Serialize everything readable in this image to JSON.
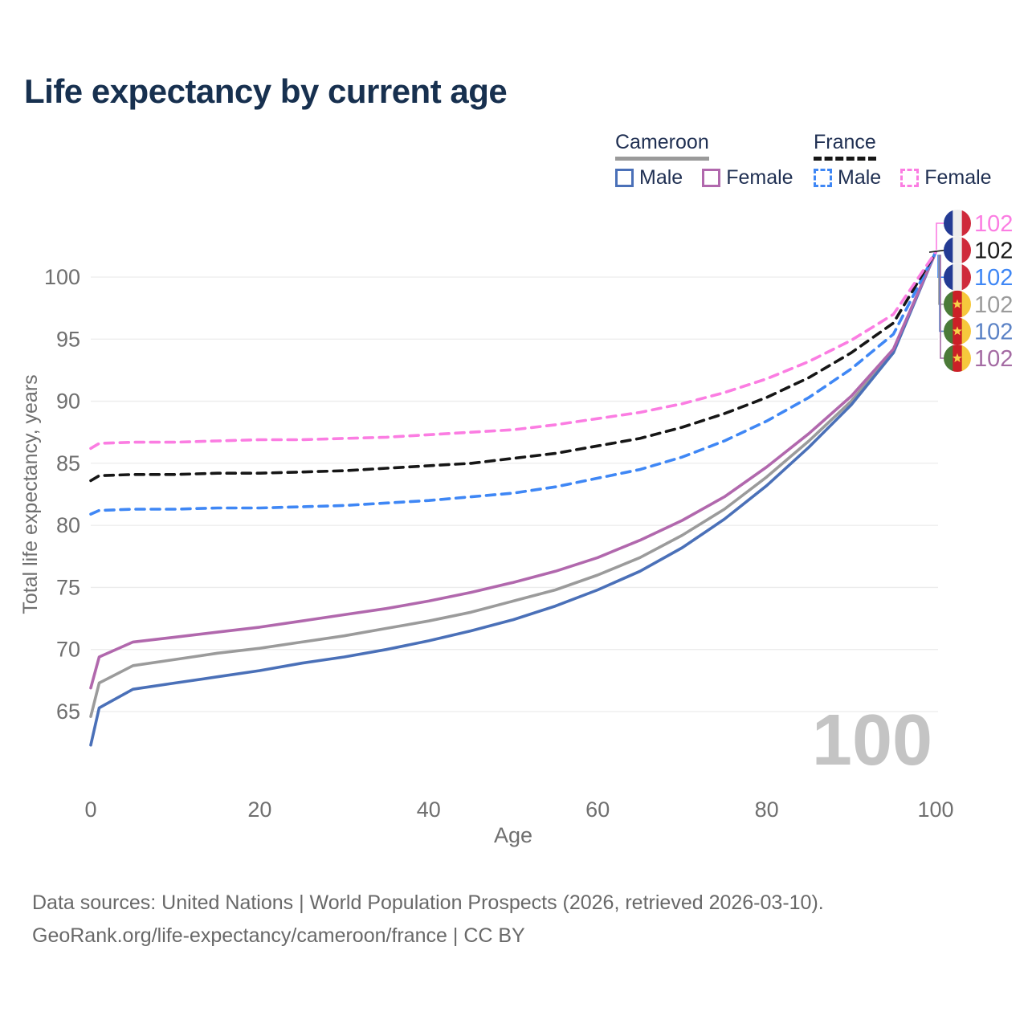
{
  "title": "Life expectancy by current age",
  "legend": {
    "groups": [
      {
        "name": "Cameroon",
        "line_style": "solid",
        "underline_color": "#9a9a9a",
        "items": [
          {
            "label": "Male",
            "color": "#4a70b8"
          },
          {
            "label": "Female",
            "color": "#b168ad"
          }
        ]
      },
      {
        "name": "France",
        "line_style": "dashed",
        "underline_color": "#161616",
        "items": [
          {
            "label": "Male",
            "color": "#3f87f5"
          },
          {
            "label": "Female",
            "color": "#fb7de2"
          }
        ]
      }
    ]
  },
  "watermark": "100",
  "footer": {
    "line1": "Data sources: United Nations | World Population Prospects (2026, retrieved 2026-03-10).",
    "line2": "GeoRank.org/life-expectancy/cameroon/france | CC BY"
  },
  "chart_data": {
    "type": "line",
    "title": "Life expectancy by current age",
    "xlabel": "Age",
    "ylabel": "Total life expectancy, years",
    "xlim": [
      0,
      100
    ],
    "ylim": [
      60,
      103
    ],
    "xticks": [
      0,
      20,
      40,
      60,
      80,
      100
    ],
    "yticks": [
      65,
      70,
      75,
      80,
      85,
      90,
      95,
      100
    ],
    "grid": true,
    "legend_position": "top-right",
    "x": [
      0,
      1,
      5,
      10,
      15,
      20,
      25,
      30,
      35,
      40,
      45,
      50,
      55,
      60,
      65,
      70,
      75,
      80,
      85,
      90,
      95,
      100
    ],
    "series": [
      {
        "name": "Cameroon Both sexes",
        "country": "Cameroon",
        "dash": "solid",
        "color": "#9b9b9b",
        "values": [
          64.6,
          67.3,
          68.7,
          69.2,
          69.7,
          70.1,
          70.6,
          71.1,
          71.7,
          72.3,
          73.0,
          73.9,
          74.8,
          76.0,
          77.4,
          79.2,
          81.3,
          83.9,
          86.8,
          90.0,
          94.0,
          102
        ]
      },
      {
        "name": "Cameroon Male",
        "country": "Cameroon",
        "sex": "Male",
        "dash": "solid",
        "color": "#4a70b8",
        "values": [
          62.3,
          65.3,
          66.8,
          67.3,
          67.8,
          68.3,
          68.9,
          69.4,
          70.0,
          70.7,
          71.5,
          72.4,
          73.5,
          74.8,
          76.3,
          78.2,
          80.5,
          83.2,
          86.3,
          89.7,
          93.9,
          102
        ]
      },
      {
        "name": "Cameroon Female",
        "country": "Cameroon",
        "sex": "Female",
        "dash": "solid",
        "color": "#b168ad",
        "values": [
          66.9,
          69.4,
          70.6,
          71.0,
          71.4,
          71.8,
          72.3,
          72.8,
          73.3,
          73.9,
          74.6,
          75.4,
          76.3,
          77.4,
          78.8,
          80.4,
          82.3,
          84.7,
          87.4,
          90.4,
          94.2,
          102
        ]
      },
      {
        "name": "France Male",
        "country": "France",
        "sex": "Male",
        "dash": "dashed",
        "color": "#3f87f5",
        "values": [
          80.9,
          81.2,
          81.3,
          81.3,
          81.4,
          81.4,
          81.5,
          81.6,
          81.8,
          82.0,
          82.3,
          82.6,
          83.1,
          83.8,
          84.5,
          85.5,
          86.8,
          88.4,
          90.3,
          92.6,
          95.4,
          102
        ]
      },
      {
        "name": "France Both sexes",
        "country": "France",
        "dash": "dashed",
        "color": "#161616",
        "values": [
          83.6,
          84.0,
          84.1,
          84.1,
          84.2,
          84.2,
          84.3,
          84.4,
          84.6,
          84.8,
          85.0,
          85.4,
          85.8,
          86.4,
          87.0,
          87.9,
          89.0,
          90.3,
          91.9,
          93.9,
          96.3,
          102
        ]
      },
      {
        "name": "France Female",
        "country": "France",
        "sex": "Female",
        "dash": "dashed",
        "color": "#fb7de2",
        "values": [
          86.2,
          86.6,
          86.7,
          86.7,
          86.8,
          86.9,
          86.9,
          87.0,
          87.1,
          87.3,
          87.5,
          87.7,
          88.1,
          88.6,
          89.1,
          89.8,
          90.7,
          91.8,
          93.2,
          94.9,
          97.0,
          102
        ]
      }
    ],
    "end_labels": [
      {
        "series": "France Female",
        "flag": "france",
        "value": "102",
        "color": "#fb7de2"
      },
      {
        "series": "France Both sexes",
        "flag": "france",
        "value": "102",
        "color": "#1a1a1a"
      },
      {
        "series": "France Male",
        "flag": "france",
        "value": "102",
        "color": "#3f87f5"
      },
      {
        "series": "Cameroon Both sexes",
        "flag": "cameroon",
        "value": "102",
        "color": "#9b9b9b"
      },
      {
        "series": "Cameroon Male",
        "flag": "cameroon",
        "value": "102",
        "color": "#5c83c6"
      },
      {
        "series": "Cameroon Female",
        "flag": "cameroon",
        "value": "102",
        "color": "#a46ba3"
      }
    ]
  }
}
